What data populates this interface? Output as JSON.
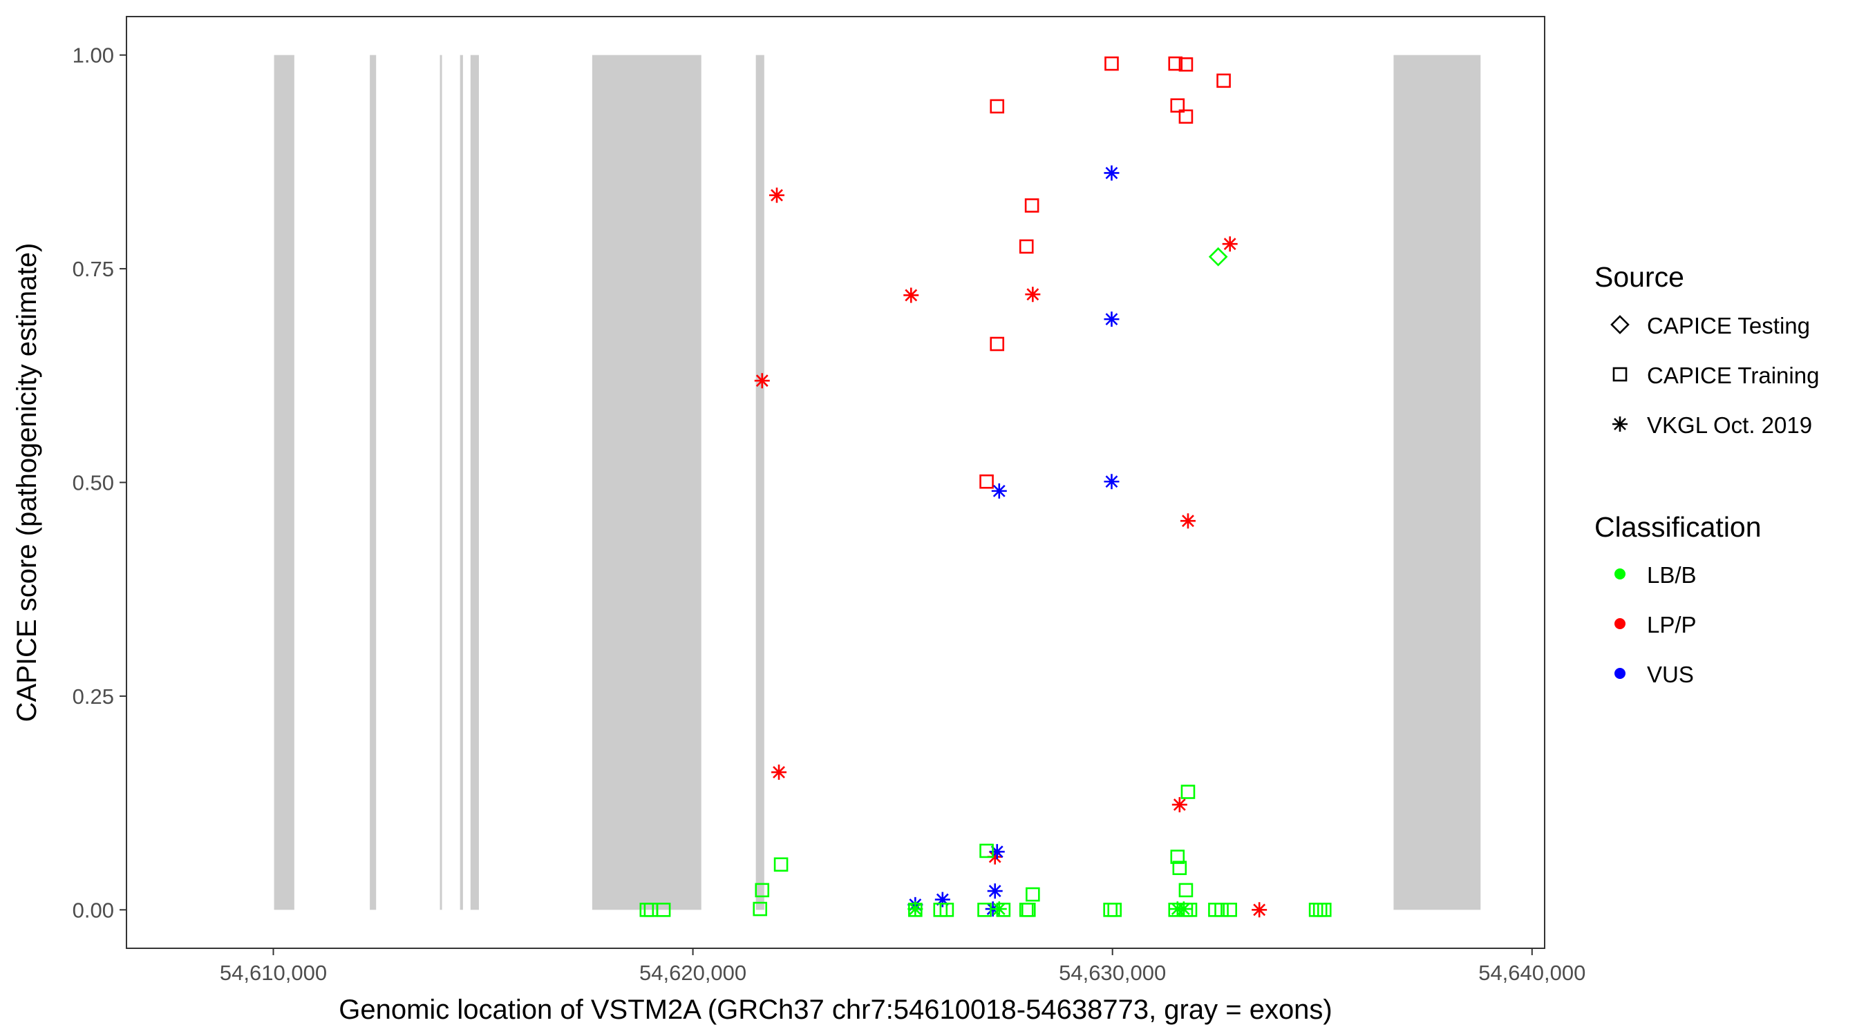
{
  "chart_data": {
    "type": "scatter",
    "title": "",
    "xlabel": "Genomic location of VSTM2A (GRCh37 chr7:54610018-54638773, gray = exons)",
    "ylabel": "CAPICE score (pathogenicity estimate)",
    "xlim": [
      54606500,
      54640300
    ],
    "ylim": [
      -0.045,
      1.045
    ],
    "x_ticks": [
      54610000,
      54620000,
      54630000,
      54640000
    ],
    "x_tick_labels": [
      "54,610,000",
      "54,620,000",
      "54,630,000",
      "54,640,000"
    ],
    "y_ticks": [
      0,
      0.25,
      0.5,
      0.75,
      1.0
    ],
    "y_tick_labels": [
      "0.00",
      "0.25",
      "0.50",
      "0.75",
      "1.00"
    ],
    "grid": false,
    "exon_color": "#cccccc",
    "exons": [
      {
        "start": 54610018,
        "end": 54610500
      },
      {
        "start": 54612300,
        "end": 54612450
      },
      {
        "start": 54613970,
        "end": 54614020
      },
      {
        "start": 54614450,
        "end": 54614520
      },
      {
        "start": 54614700,
        "end": 54614900
      },
      {
        "start": 54617600,
        "end": 54620200
      },
      {
        "start": 54621500,
        "end": 54621700
      },
      {
        "start": 54636700,
        "end": 54638773
      }
    ],
    "legends": [
      {
        "title": "Source",
        "position": "right",
        "entries": [
          {
            "label": "CAPICE Testing",
            "shape": "diamond"
          },
          {
            "label": "CAPICE Training",
            "shape": "square"
          },
          {
            "label": "VKGL Oct. 2019",
            "shape": "asterisk"
          }
        ]
      },
      {
        "title": "Classification",
        "position": "right",
        "entries": [
          {
            "label": "LB/B",
            "color": "#00ff00"
          },
          {
            "label": "LP/P",
            "color": "#ff0000"
          },
          {
            "label": "VUS",
            "color": "#0000ff"
          }
        ]
      }
    ],
    "series": [
      {
        "name": "LP/P",
        "color": "#ff0000",
        "points": [
          {
            "x": 54629980,
            "y": 0.99,
            "source": "CAPICE Training"
          },
          {
            "x": 54631500,
            "y": 0.99,
            "source": "CAPICE Training"
          },
          {
            "x": 54631750,
            "y": 0.989,
            "source": "CAPICE Training"
          },
          {
            "x": 54632650,
            "y": 0.97,
            "source": "CAPICE Training"
          },
          {
            "x": 54631550,
            "y": 0.941,
            "source": "CAPICE Training"
          },
          {
            "x": 54631750,
            "y": 0.928,
            "source": "CAPICE Training"
          },
          {
            "x": 54627250,
            "y": 0.94,
            "source": "CAPICE Training"
          },
          {
            "x": 54628080,
            "y": 0.824,
            "source": "CAPICE Training"
          },
          {
            "x": 54627950,
            "y": 0.776,
            "source": "CAPICE Training"
          },
          {
            "x": 54627250,
            "y": 0.662,
            "source": "CAPICE Training"
          },
          {
            "x": 54627000,
            "y": 0.501,
            "source": "CAPICE Training"
          },
          {
            "x": 54622000,
            "y": 0.836,
            "source": "VKGL Oct. 2019"
          },
          {
            "x": 54632800,
            "y": 0.779,
            "source": "VKGL Oct. 2019"
          },
          {
            "x": 54625200,
            "y": 0.719,
            "source": "VKGL Oct. 2019"
          },
          {
            "x": 54628100,
            "y": 0.72,
            "source": "VKGL Oct. 2019"
          },
          {
            "x": 54621650,
            "y": 0.619,
            "source": "VKGL Oct. 2019"
          },
          {
            "x": 54631800,
            "y": 0.455,
            "source": "VKGL Oct. 2019"
          },
          {
            "x": 54622050,
            "y": 0.161,
            "source": "VKGL Oct. 2019"
          },
          {
            "x": 54631600,
            "y": 0.123,
            "source": "VKGL Oct. 2019"
          },
          {
            "x": 54627200,
            "y": 0.062,
            "source": "VKGL Oct. 2019"
          },
          {
            "x": 54633500,
            "y": 0.0,
            "source": "VKGL Oct. 2019"
          }
        ]
      },
      {
        "name": "VUS",
        "color": "#0000ff",
        "points": [
          {
            "x": 54629980,
            "y": 0.862,
            "source": "VKGL Oct. 2019"
          },
          {
            "x": 54629980,
            "y": 0.691,
            "source": "VKGL Oct. 2019"
          },
          {
            "x": 54629980,
            "y": 0.501,
            "source": "VKGL Oct. 2019"
          },
          {
            "x": 54627300,
            "y": 0.49,
            "source": "VKGL Oct. 2019"
          },
          {
            "x": 54627250,
            "y": 0.068,
            "source": "VKGL Oct. 2019"
          },
          {
            "x": 54627200,
            "y": 0.022,
            "source": "VKGL Oct. 2019"
          },
          {
            "x": 54625950,
            "y": 0.012,
            "source": "VKGL Oct. 2019"
          },
          {
            "x": 54625300,
            "y": 0.006,
            "source": "VKGL Oct. 2019"
          },
          {
            "x": 54627150,
            "y": 0.001,
            "source": "VKGL Oct. 2019"
          }
        ]
      },
      {
        "name": "LB/B",
        "color": "#00ff00",
        "points": [
          {
            "x": 54632520,
            "y": 0.764,
            "source": "CAPICE Testing"
          },
          {
            "x": 54631800,
            "y": 0.138,
            "source": "CAPICE Training"
          },
          {
            "x": 54627000,
            "y": 0.069,
            "source": "CAPICE Training"
          },
          {
            "x": 54631550,
            "y": 0.062,
            "source": "CAPICE Training"
          },
          {
            "x": 54622100,
            "y": 0.053,
            "source": "CAPICE Training"
          },
          {
            "x": 54631600,
            "y": 0.049,
            "source": "CAPICE Training"
          },
          {
            "x": 54621650,
            "y": 0.023,
            "source": "CAPICE Training"
          },
          {
            "x": 54631750,
            "y": 0.023,
            "source": "CAPICE Training"
          },
          {
            "x": 54628100,
            "y": 0.018,
            "source": "CAPICE Training"
          },
          {
            "x": 54621600,
            "y": 0.001,
            "source": "CAPICE Training"
          },
          {
            "x": 54618900,
            "y": 0.0,
            "source": "CAPICE Training"
          },
          {
            "x": 54619000,
            "y": 0.0,
            "source": "CAPICE Training"
          },
          {
            "x": 54619300,
            "y": 0.0,
            "source": "CAPICE Training"
          },
          {
            "x": 54625300,
            "y": 0.0,
            "source": "CAPICE Training"
          },
          {
            "x": 54625900,
            "y": 0.0,
            "source": "CAPICE Training"
          },
          {
            "x": 54626050,
            "y": 0.0,
            "source": "CAPICE Training"
          },
          {
            "x": 54626950,
            "y": 0.0,
            "source": "CAPICE Training"
          },
          {
            "x": 54627400,
            "y": 0.0,
            "source": "CAPICE Training"
          },
          {
            "x": 54627950,
            "y": 0.0,
            "source": "CAPICE Training"
          },
          {
            "x": 54628000,
            "y": 0.0,
            "source": "CAPICE Training"
          },
          {
            "x": 54629950,
            "y": 0.0,
            "source": "CAPICE Training"
          },
          {
            "x": 54630050,
            "y": 0.0,
            "source": "CAPICE Training"
          },
          {
            "x": 54631500,
            "y": 0.0,
            "source": "CAPICE Training"
          },
          {
            "x": 54631750,
            "y": 0.0,
            "source": "CAPICE Training"
          },
          {
            "x": 54631850,
            "y": 0.0,
            "source": "CAPICE Training"
          },
          {
            "x": 54632450,
            "y": 0.0,
            "source": "CAPICE Training"
          },
          {
            "x": 54632600,
            "y": 0.0,
            "source": "CAPICE Training"
          },
          {
            "x": 54632800,
            "y": 0.0,
            "source": "CAPICE Training"
          },
          {
            "x": 54634850,
            "y": 0.0,
            "source": "CAPICE Training"
          },
          {
            "x": 54634950,
            "y": 0.0,
            "source": "CAPICE Training"
          },
          {
            "x": 54635050,
            "y": 0.0,
            "source": "CAPICE Training"
          },
          {
            "x": 54625300,
            "y": 0.001,
            "source": "VKGL Oct. 2019"
          },
          {
            "x": 54627300,
            "y": 0.001,
            "source": "VKGL Oct. 2019"
          },
          {
            "x": 54631550,
            "y": 0.001,
            "source": "VKGL Oct. 2019"
          },
          {
            "x": 54631700,
            "y": 0.001,
            "source": "VKGL Oct. 2019"
          }
        ]
      }
    ]
  }
}
